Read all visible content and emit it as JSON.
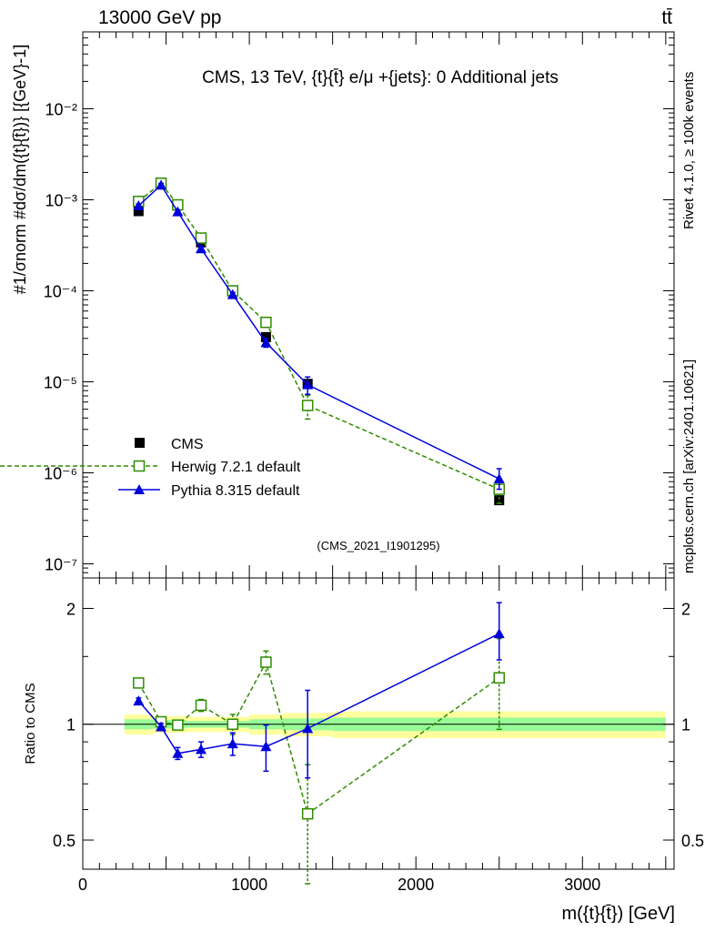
{
  "header": {
    "left": "13000 GeV pp",
    "right": "tt̄"
  },
  "side_labels": {
    "rivet": "Rivet 4.1.0, ≥ 100k events",
    "mcplots": "mcplots.cern.ch [arXiv:2401.10621]"
  },
  "colors": {
    "cms": "#000000",
    "herwig": "#2e8b00",
    "pythia": "#0000dd",
    "band_outer": "#ffff9e",
    "band_inner": "#98fb98"
  },
  "chart_data": [
    {
      "type": "scatter",
      "panel": "main",
      "title": "CMS, 13 TeV, {t}{t̄} e/μ +{jets}: 0 Additional jets",
      "ylabel": "#1/σnorm #dσ/dm({t}{t̄})} [{GeV}-1]",
      "yscale": "log",
      "ylim": [
        7e-08,
        0.07
      ],
      "xlim": [
        0,
        3550
      ],
      "analysis_tag": "(CMS_2021_I1901295)",
      "y_ticks": [
        {
          "value": 1e-07,
          "label": "10⁻⁷"
        },
        {
          "value": 1e-06,
          "label": "10⁻⁶"
        },
        {
          "value": 1e-05,
          "label": "10⁻⁵"
        },
        {
          "value": 0.0001,
          "label": "10⁻⁴"
        },
        {
          "value": 0.001,
          "label": "10⁻³"
        },
        {
          "value": 0.01,
          "label": "10⁻²"
        }
      ],
      "legend": [
        "CMS",
        "Herwig 7.2.1 default",
        "Pythia 8.315 default"
      ],
      "series": [
        {
          "name": "CMS",
          "x": [
            335,
            470,
            570,
            710,
            900,
            1100,
            1350,
            2500
          ],
          "values": [
            0.00075,
            0.0015,
            0.00088,
            0.00034,
            0.0001,
            3.1e-05,
            9.5e-06,
            5e-07
          ]
        },
        {
          "name": "Herwig 7.2.1 default",
          "x": [
            335,
            470,
            570,
            710,
            900,
            1100,
            1350,
            2500
          ],
          "values": [
            0.00096,
            0.00152,
            0.00088,
            0.00038,
            0.0001,
            4.5e-05,
            5.5e-06,
            6.6e-07
          ],
          "err_lo": [
            5e-05,
            6e-05,
            4e-05,
            2e-05,
            6e-06,
            3e-06,
            1.6e-06,
            2e-07
          ],
          "err_hi": [
            5e-05,
            6e-05,
            4e-05,
            2e-05,
            6e-06,
            3e-06,
            1.6e-06,
            2e-07
          ]
        },
        {
          "name": "Pythia 8.315 default",
          "x": [
            335,
            470,
            570,
            710,
            900,
            1100,
            1350,
            2500
          ],
          "values": [
            0.00086,
            0.00145,
            0.00074,
            0.00029,
            9.1e-05,
            2.7e-05,
            9.3e-06,
            8.6e-07
          ],
          "err_lo": [
            4e-05,
            6e-05,
            3e-05,
            1.5e-05,
            5e-06,
            3e-06,
            2e-06,
            2e-07
          ],
          "err_hi": [
            4e-05,
            6e-05,
            3e-05,
            1.5e-05,
            5e-06,
            3e-06,
            2e-06,
            2.5e-07
          ]
        }
      ]
    },
    {
      "type": "scatter",
      "panel": "ratio",
      "ylabel": "Ratio to CMS",
      "xlabel": "m({t}{t̄}) [GeV]",
      "yscale": "log",
      "ylim": [
        0.42,
        2.4
      ],
      "xlim": [
        0,
        3550
      ],
      "x_ticks": [
        {
          "value": 0,
          "label": "0"
        },
        {
          "value": 1000,
          "label": "1000"
        },
        {
          "value": 2000,
          "label": "2000"
        },
        {
          "value": 3000,
          "label": "3000"
        }
      ],
      "y_ticks": [
        {
          "value": 0.5,
          "label": "0.5"
        },
        {
          "value": 1,
          "label": "1"
        },
        {
          "value": 2,
          "label": "2"
        }
      ],
      "band_bins": [
        {
          "x0": 250,
          "x1": 420,
          "outer": [
            0.94,
            1.06
          ],
          "inner": [
            0.97,
            1.03
          ]
        },
        {
          "x0": 420,
          "x1": 520,
          "outer": [
            0.95,
            1.05
          ],
          "inner": [
            0.975,
            1.025
          ]
        },
        {
          "x0": 520,
          "x1": 620,
          "outer": [
            0.95,
            1.05
          ],
          "inner": [
            0.975,
            1.025
          ]
        },
        {
          "x0": 620,
          "x1": 800,
          "outer": [
            0.955,
            1.045
          ],
          "inner": [
            0.98,
            1.02
          ]
        },
        {
          "x0": 800,
          "x1": 1000,
          "outer": [
            0.955,
            1.045
          ],
          "inner": [
            0.98,
            1.02
          ]
        },
        {
          "x0": 1000,
          "x1": 1200,
          "outer": [
            0.94,
            1.06
          ],
          "inner": [
            0.97,
            1.03
          ]
        },
        {
          "x0": 1200,
          "x1": 1500,
          "outer": [
            0.93,
            1.07
          ],
          "inner": [
            0.965,
            1.035
          ]
        },
        {
          "x0": 1500,
          "x1": 3500,
          "outer": [
            0.92,
            1.08
          ],
          "inner": [
            0.96,
            1.04
          ]
        }
      ],
      "series": [
        {
          "name": "Herwig 7.2.1 default",
          "x": [
            335,
            470,
            570,
            710,
            900,
            1100,
            1350,
            2500
          ],
          "values": [
            1.28,
            1.015,
            0.995,
            1.12,
            1.0,
            1.45,
            0.585,
            1.32
          ],
          "err_lo": [
            0.03,
            0.02,
            0.02,
            0.04,
            0.06,
            0.1,
            0.2,
            0.35
          ],
          "err_hi": [
            0.03,
            0.02,
            0.02,
            0.04,
            0.06,
            0.1,
            0.2,
            0.35
          ]
        },
        {
          "name": "Pythia 8.315 default",
          "x": [
            335,
            470,
            570,
            710,
            900,
            1100,
            1350,
            2500
          ],
          "values": [
            1.15,
            0.985,
            0.84,
            0.86,
            0.89,
            0.875,
            0.975,
            1.72
          ],
          "err_lo": [
            0.02,
            0.02,
            0.03,
            0.04,
            0.06,
            0.12,
            0.25,
            0.25
          ],
          "err_hi": [
            0.02,
            0.02,
            0.03,
            0.04,
            0.06,
            0.12,
            0.25,
            0.35
          ]
        }
      ]
    }
  ]
}
